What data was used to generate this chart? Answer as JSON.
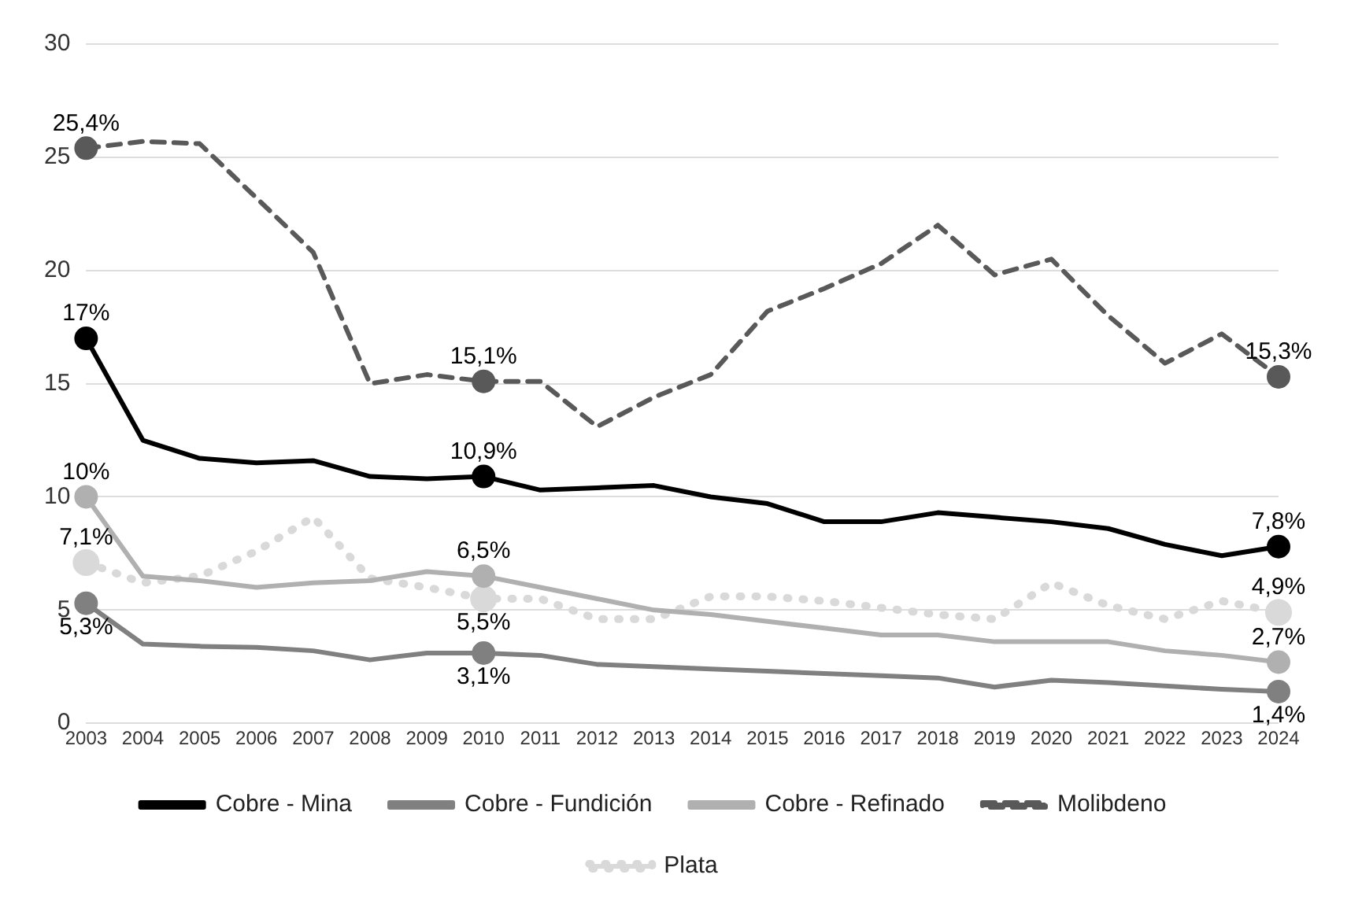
{
  "chart_data": {
    "type": "line",
    "categories": [
      "2003",
      "2004",
      "2005",
      "2006",
      "2007",
      "2008",
      "2009",
      "2010",
      "2011",
      "2012",
      "2013",
      "2014",
      "2015",
      "2016",
      "2017",
      "2018",
      "2019",
      "2020",
      "2021",
      "2022",
      "2023",
      "2024"
    ],
    "ylim": [
      0,
      30
    ],
    "yticks": [
      0,
      5,
      10,
      15,
      20,
      25,
      30
    ],
    "grid": "y",
    "legend": "bottom",
    "series": [
      {
        "name": "Cobre - Mina",
        "color": "#000000",
        "line_style": "solid",
        "values": [
          17,
          12.5,
          11.7,
          11.5,
          11.6,
          10.9,
          10.8,
          10.9,
          10.3,
          10.4,
          10.5,
          10,
          9.7,
          8.9,
          8.9,
          9.3,
          9.1,
          8.9,
          8.6,
          7.9,
          7.4,
          7.8
        ],
        "value_labels": [
          "17%",
          null,
          null,
          null,
          null,
          null,
          null,
          "10,9%",
          null,
          null,
          null,
          null,
          null,
          null,
          null,
          null,
          null,
          null,
          null,
          null,
          null,
          "7,8%"
        ]
      },
      {
        "name": "Cobre - Fundición",
        "color": "#808080",
        "line_style": "solid",
        "values": [
          5.3,
          3.5,
          3.4,
          3.35,
          3.2,
          2.8,
          3.1,
          3.1,
          3,
          2.6,
          2.5,
          2.4,
          2.3,
          2.2,
          2.1,
          2,
          1.6,
          1.9,
          1.8,
          1.65,
          1.5,
          1.4
        ],
        "value_labels": [
          "5,3%",
          null,
          null,
          null,
          null,
          null,
          null,
          "3,1%",
          null,
          null,
          null,
          null,
          null,
          null,
          null,
          null,
          null,
          null,
          null,
          null,
          null,
          "1,4%"
        ]
      },
      {
        "name": "Cobre - Refinado",
        "color": "#b0b0b0",
        "line_style": "solid",
        "values": [
          10,
          6.5,
          6.3,
          6,
          6.2,
          6.3,
          6.7,
          6.5,
          6,
          5.5,
          5,
          4.8,
          4.5,
          4.2,
          3.9,
          3.9,
          3.6,
          3.6,
          3.6,
          3.2,
          3,
          2.7
        ],
        "value_labels": [
          "10%",
          null,
          null,
          null,
          null,
          null,
          null,
          "6,5%",
          null,
          null,
          null,
          null,
          null,
          null,
          null,
          null,
          null,
          null,
          null,
          null,
          null,
          "2,7%"
        ]
      },
      {
        "name": "Molibdeno",
        "color": "#595959",
        "line_style": "dashed",
        "values": [
          25.4,
          25.7,
          25.6,
          23.2,
          20.8,
          15,
          15.4,
          15.1,
          15.1,
          13.1,
          14.4,
          15.4,
          18.2,
          19.2,
          20.3,
          22,
          19.8,
          20.5,
          18,
          15.9,
          17.2,
          15.3
        ],
        "value_labels": [
          "25,4%",
          null,
          null,
          null,
          null,
          null,
          null,
          "15,1%",
          null,
          null,
          null,
          null,
          null,
          null,
          null,
          null,
          null,
          null,
          null,
          null,
          null,
          "15,3%"
        ]
      },
      {
        "name": "Plata",
        "color": "#d9d9d9",
        "line_style": "dotted",
        "values": [
          7.1,
          6.2,
          6.5,
          7.6,
          9.1,
          6.4,
          6,
          5.5,
          5.5,
          4.6,
          4.6,
          5.6,
          5.6,
          5.4,
          5.1,
          4.8,
          4.6,
          6.2,
          5.2,
          4.6,
          5.4,
          4.9
        ],
        "value_labels": [
          "7,1%",
          null,
          null,
          null,
          null,
          null,
          null,
          "5,5%",
          null,
          null,
          null,
          null,
          null,
          null,
          null,
          null,
          null,
          null,
          null,
          null,
          null,
          "4,9%"
        ]
      }
    ]
  }
}
